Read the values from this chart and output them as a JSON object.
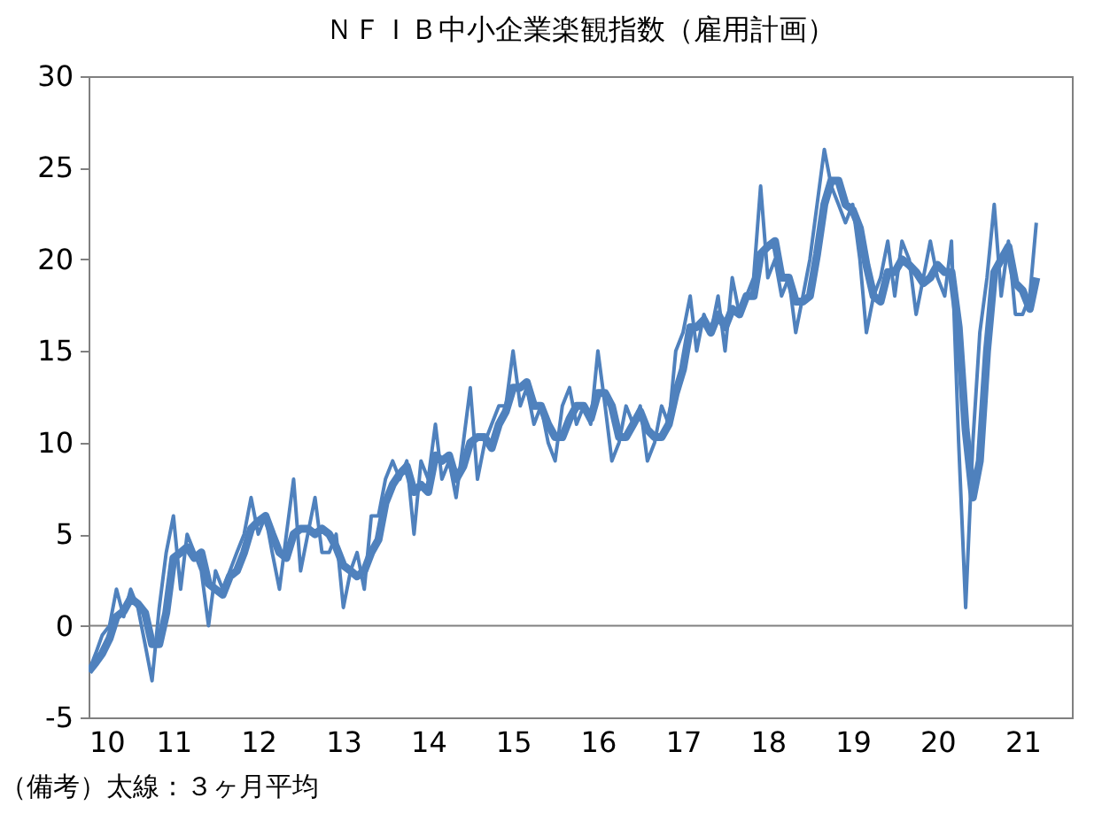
{
  "chart_data": {
    "type": "line",
    "title": "ＮＦＩＢ中小企業楽観指数（雇用計画）",
    "annotations": [
      "（備考）太線：３ヶ月平均"
    ],
    "x": [
      "2010-01",
      "2010-02",
      "2010-03",
      "2010-04",
      "2010-05",
      "2010-06",
      "2010-07",
      "2010-08",
      "2010-09",
      "2010-10",
      "2010-11",
      "2010-12",
      "2011-01",
      "2011-02",
      "2011-03",
      "2011-04",
      "2011-05",
      "2011-06",
      "2011-07",
      "2011-08",
      "2011-09",
      "2011-10",
      "2011-11",
      "2011-12",
      "2012-01",
      "2012-02",
      "2012-03",
      "2012-04",
      "2012-05",
      "2012-06",
      "2012-07",
      "2012-08",
      "2012-09",
      "2012-10",
      "2012-11",
      "2012-12",
      "2013-01",
      "2013-02",
      "2013-03",
      "2013-04",
      "2013-05",
      "2013-06",
      "2013-07",
      "2013-08",
      "2013-09",
      "2013-10",
      "2013-11",
      "2013-12",
      "2014-01",
      "2014-02",
      "2014-03",
      "2014-04",
      "2014-05",
      "2014-06",
      "2014-07",
      "2014-08",
      "2014-09",
      "2014-10",
      "2014-11",
      "2014-12",
      "2015-01",
      "2015-02",
      "2015-03",
      "2015-04",
      "2015-05",
      "2015-06",
      "2015-07",
      "2015-08",
      "2015-09",
      "2015-10",
      "2015-11",
      "2015-12",
      "2016-01",
      "2016-02",
      "2016-03",
      "2016-04",
      "2016-05",
      "2016-06",
      "2016-07",
      "2016-08",
      "2016-09",
      "2016-10",
      "2016-11",
      "2016-12",
      "2017-01",
      "2017-02",
      "2017-03",
      "2017-04",
      "2017-05",
      "2017-06",
      "2017-07",
      "2017-08",
      "2017-09",
      "2017-10",
      "2017-11",
      "2017-12",
      "2018-01",
      "2018-02",
      "2018-03",
      "2018-04",
      "2018-05",
      "2018-06",
      "2018-07",
      "2018-08",
      "2018-09",
      "2018-10",
      "2018-11",
      "2018-12",
      "2019-01",
      "2019-02",
      "2019-03",
      "2019-04",
      "2019-05",
      "2019-06",
      "2019-07",
      "2019-08",
      "2019-09",
      "2019-10",
      "2019-11",
      "2019-12",
      "2020-01",
      "2020-02",
      "2020-03",
      "2020-04",
      "2020-05",
      "2020-06",
      "2020-07",
      "2020-08",
      "2020-09",
      "2020-10",
      "2020-11",
      "2020-12",
      "2021-01",
      "2021-02",
      "2021-03"
    ],
    "series": [
      {
        "color": "#4f81bd",
        "values": [
          -2.5,
          -1.5,
          -0.5,
          0,
          2,
          0.5,
          2,
          1,
          -1,
          -3,
          1,
          4,
          6,
          2,
          5,
          4,
          3,
          0,
          3,
          2,
          3,
          4,
          5,
          7,
          5,
          6,
          4,
          2,
          5,
          8,
          3,
          5,
          7,
          4,
          4,
          5,
          1,
          3,
          4,
          2,
          6,
          6,
          8,
          9,
          8,
          9,
          5,
          9,
          8,
          11,
          8,
          9,
          7,
          10,
          13,
          8,
          10,
          11,
          12,
          12,
          15,
          12,
          13,
          11,
          12,
          10,
          9,
          12,
          13,
          11,
          12,
          11,
          15,
          12,
          9,
          10,
          12,
          11,
          12,
          9,
          10,
          12,
          11,
          15,
          16,
          18,
          15,
          17,
          16,
          18,
          15,
          19,
          17,
          18,
          19,
          24,
          19,
          20,
          18,
          19,
          16,
          18,
          20,
          23,
          26,
          24,
          23,
          22,
          23,
          20,
          16,
          18,
          19,
          21,
          18,
          21,
          20,
          17,
          19,
          21,
          19,
          18,
          21,
          10,
          1,
          10,
          16,
          19,
          23,
          18,
          21,
          17,
          17,
          18,
          22
        ]
      },
      {
        "color": "#4f81bd",
        "values": [
          -2.5,
          -2.0,
          -1.5,
          -0.7,
          0.5,
          0.8,
          1.5,
          1.2,
          0.7,
          -1.0,
          -1.0,
          0.7,
          3.7,
          4.0,
          4.3,
          3.7,
          4.0,
          2.3,
          2.0,
          1.7,
          2.7,
          3.0,
          4.0,
          5.3,
          5.7,
          6.0,
          5.0,
          4.0,
          3.7,
          5.0,
          5.3,
          5.3,
          5.0,
          5.3,
          5.0,
          4.3,
          3.3,
          3.0,
          2.7,
          3.0,
          4.0,
          4.7,
          6.7,
          7.7,
          8.3,
          8.7,
          7.3,
          7.7,
          7.3,
          9.3,
          9.0,
          9.3,
          8.0,
          8.7,
          10.0,
          10.3,
          10.3,
          9.7,
          11.0,
          11.7,
          13.0,
          13.0,
          13.3,
          12.0,
          12.0,
          11.0,
          10.3,
          10.3,
          11.3,
          12.0,
          12.0,
          11.3,
          12.7,
          12.7,
          12.0,
          10.3,
          10.3,
          11.0,
          11.7,
          10.7,
          10.3,
          10.3,
          11.0,
          12.7,
          14.0,
          16.3,
          16.3,
          16.7,
          16.0,
          17.0,
          16.3,
          17.3,
          17.0,
          18.0,
          18.0,
          20.3,
          20.7,
          21.0,
          19.0,
          19.0,
          17.7,
          17.7,
          18.0,
          20.3,
          23.0,
          24.3,
          24.3,
          23.0,
          22.7,
          21.7,
          19.7,
          18.0,
          17.7,
          19.3,
          19.3,
          20.0,
          19.7,
          19.3,
          18.7,
          19.0,
          19.7,
          19.3,
          19.3,
          16.3,
          10.7,
          7.0,
          9.0,
          15.0,
          19.3,
          20.0,
          20.7,
          18.7,
          18.3,
          17.3,
          19.0
        ]
      }
    ],
    "xlim": [
      "2010-01",
      "2021-08"
    ],
    "xticks": [
      {
        "value": "2010-01",
        "label": "10"
      },
      {
        "value": "2011-01",
        "label": "11"
      },
      {
        "value": "2012-01",
        "label": "12"
      },
      {
        "value": "2013-01",
        "label": "13"
      },
      {
        "value": "2014-01",
        "label": "14"
      },
      {
        "value": "2015-01",
        "label": "15"
      },
      {
        "value": "2016-01",
        "label": "16"
      },
      {
        "value": "2017-01",
        "label": "17"
      },
      {
        "value": "2018-01",
        "label": "18"
      },
      {
        "value": "2019-01",
        "label": "19"
      },
      {
        "value": "2020-01",
        "label": "20"
      },
      {
        "value": "2021-01",
        "label": "21"
      }
    ],
    "ylim": [
      -5,
      30
    ],
    "yticks": [
      -5,
      0,
      5,
      10,
      15,
      20,
      25,
      30
    ],
    "ref_lines": [
      {
        "axis": "y",
        "value": 0,
        "color": "#808080"
      }
    ],
    "line_style": "solid"
  }
}
